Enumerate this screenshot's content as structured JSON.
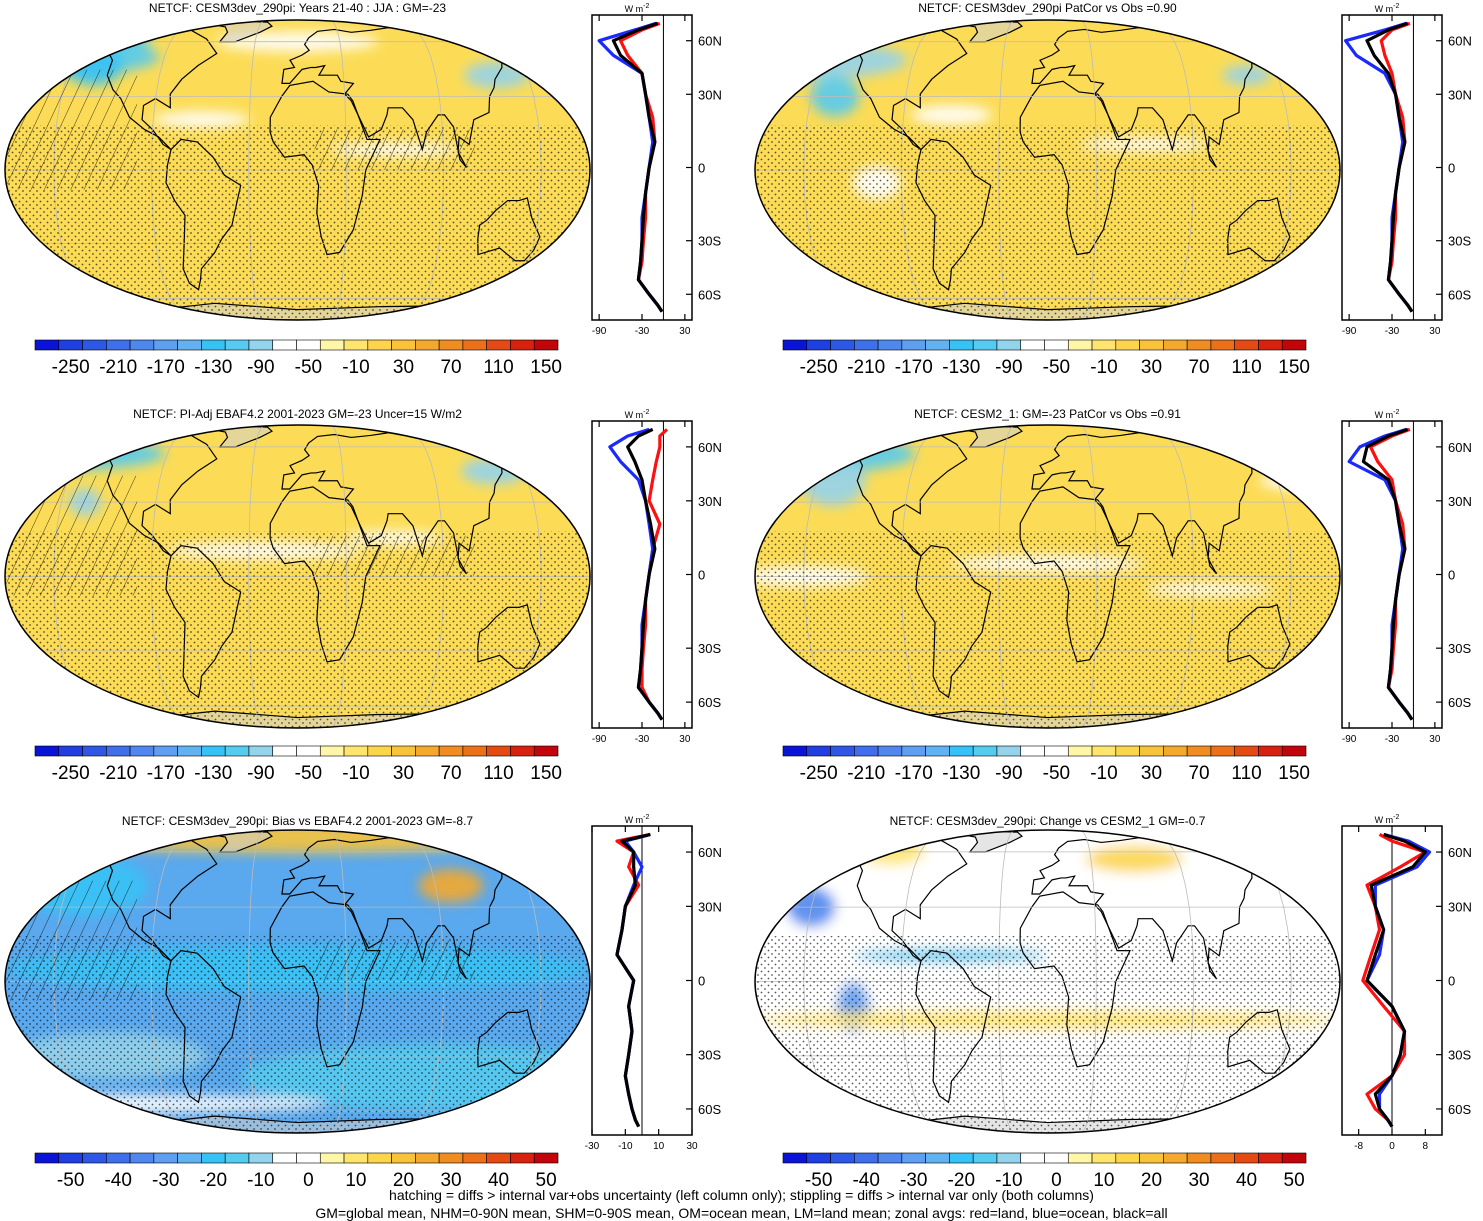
{
  "footer": {
    "line1": "hatching = diffs > internal var+obs uncertainty (left column only); stippling = diffs > internal var only (both columns)",
    "line2": "GM=global mean, NHM=0-90N mean, SHM=0-90S mean, OM=ocean mean, LM=land mean; zonal avgs: red=land, blue=ocean, black=all"
  },
  "colors": {
    "land": "#ff1010",
    "ocean": "#1a2aff",
    "all": "#000000",
    "missing_land": "#c8c8c8"
  },
  "zonal_unit": "W m-2",
  "lat_ticks": [
    "60N",
    "30N",
    "0",
    "30S",
    "60S"
  ],
  "chart_data": [
    {
      "type": "heatmap",
      "title": "NETCF: CESM3dev_290pi: Years 21-40 : JJA : GM=-23",
      "colorbar_labels": [
        "-250",
        "-210",
        "-170",
        "-130",
        "-90",
        "-50",
        "-10",
        "30",
        "70",
        "110",
        "150"
      ],
      "zonal": {
        "xticks": [
          "-90",
          "-30",
          "30"
        ],
        "xlim": [
          -100,
          40
        ],
        "xref": 0,
        "lat": [
          80,
          70,
          60,
          50,
          40,
          30,
          20,
          10,
          0,
          -10,
          -20,
          -30,
          -40,
          -50,
          -60,
          -70,
          -80
        ],
        "land": [
          -5,
          -30,
          -60,
          -50,
          -30,
          -25,
          -15,
          -12,
          -20,
          -25,
          -25,
          -28,
          -30,
          -35,
          -20,
          -8,
          -2
        ],
        "ocean": [
          -10,
          -40,
          -90,
          -70,
          -30,
          -25,
          -20,
          -15,
          -20,
          -25,
          -30,
          -30,
          -32,
          -35,
          -20,
          -8,
          -2
        ],
        "all": [
          -8,
          -35,
          -70,
          -60,
          -30,
          -25,
          -20,
          -12,
          -20,
          -25,
          -28,
          -30,
          -32,
          -35,
          -20,
          -8,
          -2
        ]
      }
    },
    {
      "type": "heatmap",
      "title": "NETCF: CESM3dev_290pi PatCor vs Obs =0.90",
      "colorbar_labels": [
        "-250",
        "-210",
        "-170",
        "-130",
        "-90",
        "-50",
        "-10",
        "30",
        "70",
        "110",
        "150"
      ],
      "zonal": {
        "xticks": [
          "-90",
          "-30",
          "30"
        ],
        "xlim": [
          -100,
          40
        ],
        "xref": 0,
        "lat": [
          80,
          70,
          60,
          50,
          40,
          30,
          20,
          10,
          0,
          -10,
          -20,
          -30,
          -40,
          -50,
          -60,
          -70,
          -80
        ],
        "land": [
          -5,
          -30,
          -45,
          -40,
          -30,
          -25,
          -15,
          -12,
          -20,
          -25,
          -25,
          -28,
          -30,
          -35,
          -20,
          -8,
          -2
        ],
        "ocean": [
          -10,
          -40,
          -95,
          -80,
          -40,
          -25,
          -20,
          -15,
          -20,
          -25,
          -30,
          -30,
          -32,
          -35,
          -20,
          -8,
          -2
        ],
        "all": [
          -8,
          -35,
          -65,
          -55,
          -35,
          -25,
          -20,
          -12,
          -20,
          -25,
          -28,
          -30,
          -32,
          -35,
          -20,
          -8,
          -2
        ]
      }
    },
    {
      "type": "heatmap",
      "title": "NETCF: PI-Adj EBAF4.2 2001-2023 GM=-23 Uncer=15 W/m2",
      "colorbar_labels": [
        "-250",
        "-210",
        "-170",
        "-130",
        "-90",
        "-50",
        "-10",
        "30",
        "70",
        "110",
        "150"
      ],
      "zonal": {
        "xticks": [
          "-90",
          "-30",
          "30"
        ],
        "xlim": [
          -100,
          40
        ],
        "xref": 0,
        "lat": [
          80,
          70,
          60,
          50,
          40,
          30,
          20,
          10,
          0,
          -10,
          -20,
          -30,
          -40,
          -50,
          -60,
          -70,
          -80
        ],
        "land": [
          5,
          -5,
          -5,
          -10,
          -15,
          -20,
          -5,
          -15,
          -20,
          -25,
          -25,
          -28,
          -30,
          -30,
          -20,
          -8,
          -2
        ],
        "ocean": [
          -20,
          -50,
          -75,
          -60,
          -35,
          -25,
          -20,
          -15,
          -20,
          -25,
          -30,
          -30,
          -32,
          -35,
          -20,
          -8,
          -2
        ],
        "all": [
          -15,
          -35,
          -50,
          -40,
          -30,
          -25,
          -18,
          -12,
          -20,
          -25,
          -28,
          -30,
          -32,
          -35,
          -20,
          -8,
          -2
        ]
      }
    },
    {
      "type": "heatmap",
      "title": "NETCF: CESM2_1: GM=-23 PatCor vs Obs =0.91",
      "colorbar_labels": [
        "-250",
        "-210",
        "-170",
        "-130",
        "-90",
        "-50",
        "-10",
        "30",
        "70",
        "110",
        "150"
      ],
      "zonal": {
        "xticks": [
          "-90",
          "-30",
          "30"
        ],
        "xlim": [
          -100,
          40
        ],
        "xref": 0,
        "lat": [
          80,
          70,
          60,
          50,
          40,
          30,
          20,
          10,
          0,
          -10,
          -20,
          -30,
          -40,
          -50,
          -60,
          -70,
          -80
        ],
        "land": [
          -5,
          -30,
          -60,
          -50,
          -30,
          -25,
          -15,
          -12,
          -20,
          -25,
          -25,
          -28,
          -30,
          -35,
          -20,
          -8,
          -2
        ],
        "ocean": [
          -10,
          -40,
          -75,
          -90,
          -40,
          -25,
          -20,
          -15,
          -20,
          -25,
          -30,
          -30,
          -32,
          -35,
          -20,
          -8,
          -2
        ],
        "all": [
          -8,
          -35,
          -65,
          -70,
          -35,
          -25,
          -20,
          -12,
          -20,
          -25,
          -28,
          -30,
          -32,
          -35,
          -20,
          -8,
          -2
        ]
      }
    },
    {
      "type": "heatmap",
      "title": "NETCF: CESM3dev_290pi: Bias vs EBAF4.2 2001-2023 GM=-8.7",
      "colorbar_labels": [
        "-50",
        "-40",
        "-30",
        "-20",
        "-10",
        "0",
        "10",
        "20",
        "30",
        "40",
        "50"
      ],
      "zonal": {
        "xticks": [
          "-30",
          "-10",
          "10",
          "30"
        ],
        "xlim": [
          -30,
          30
        ],
        "xref": 0,
        "lat": [
          80,
          70,
          60,
          50,
          40,
          30,
          20,
          10,
          0,
          -10,
          -20,
          -30,
          -40,
          -50,
          -60,
          -70,
          -80
        ],
        "land": [
          5,
          -15,
          -5,
          -8,
          -2,
          -10,
          -12,
          -15,
          -5,
          -8,
          -6,
          -8,
          -10,
          -8,
          -6,
          -4,
          -2
        ],
        "ocean": [
          5,
          -10,
          -5,
          0,
          -5,
          -10,
          -12,
          -15,
          -5,
          -8,
          -6,
          -8,
          -10,
          -8,
          -6,
          -4,
          -2
        ],
        "all": [
          5,
          -12,
          -5,
          -5,
          -4,
          -10,
          -12,
          -15,
          -5,
          -8,
          -6,
          -8,
          -10,
          -8,
          -6,
          -4,
          -2
        ]
      }
    },
    {
      "type": "heatmap",
      "title": "NETCF: CESM3dev_290pi: Change vs CESM2_1 GM=-0.7",
      "colorbar_labels": [
        "-50",
        "-40",
        "-30",
        "-20",
        "-10",
        "0",
        "10",
        "20",
        "30",
        "40",
        "50"
      ],
      "zonal": {
        "xticks": [
          "-8",
          "0",
          "8"
        ],
        "xlim": [
          -12,
          12
        ],
        "xref": 0,
        "lat": [
          80,
          70,
          60,
          50,
          40,
          30,
          20,
          10,
          0,
          -10,
          -20,
          -30,
          -40,
          -50,
          -60,
          -70,
          -80
        ],
        "land": [
          -3,
          0,
          8,
          2,
          -6,
          -4,
          -3,
          -5,
          -7,
          -2,
          3,
          3,
          0,
          -6,
          -4,
          -1,
          0
        ],
        "ocean": [
          -2,
          4,
          9,
          6,
          -4,
          -4,
          -2,
          -3,
          -6,
          0,
          3,
          2,
          0,
          -3,
          -3,
          -1,
          0
        ],
        "all": [
          -2,
          3,
          8,
          5,
          -5,
          -4,
          -2,
          -4,
          -6,
          0,
          3,
          2,
          0,
          -4,
          -3,
          -1,
          0
        ]
      }
    }
  ]
}
